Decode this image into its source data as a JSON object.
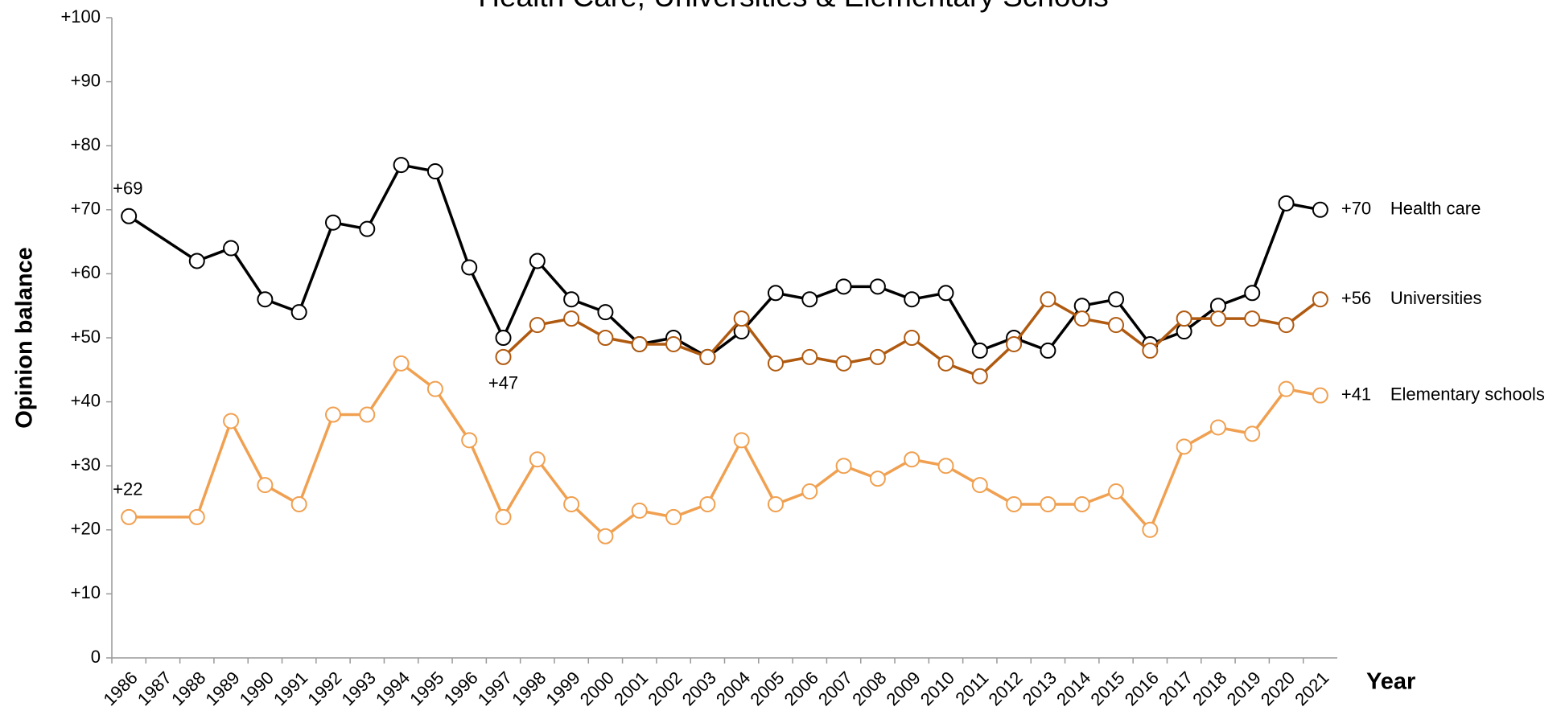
{
  "chart_data": {
    "type": "line",
    "title": "Health Care, Universities & Elementary Schools",
    "x_label": "Year",
    "y_label": "Opinion balance",
    "x": [
      1986,
      1988,
      1989,
      1990,
      1991,
      1992,
      1993,
      1994,
      1995,
      1996,
      1997,
      1998,
      1999,
      2000,
      2001,
      2002,
      2003,
      2004,
      2005,
      2006,
      2007,
      2008,
      2009,
      2010,
      2011,
      2012,
      2013,
      2014,
      2015,
      2016,
      2017,
      2018,
      2019,
      2020,
      2021
    ],
    "xlim": [
      1985.5,
      2021.5
    ],
    "xticks": [
      1986,
      1987,
      1988,
      1989,
      1990,
      1991,
      1992,
      1993,
      1994,
      1995,
      1996,
      1997,
      1998,
      1999,
      2000,
      2001,
      2002,
      2003,
      2004,
      2005,
      2006,
      2007,
      2008,
      2009,
      2010,
      2011,
      2012,
      2013,
      2014,
      2015,
      2016,
      2017,
      2018,
      2019,
      2020,
      2021
    ],
    "ylim": [
      0,
      100
    ],
    "yticks": [
      0,
      {
        "value": 10,
        "label": "+10"
      },
      {
        "value": 20,
        "label": "+20"
      },
      {
        "value": 30,
        "label": "+30"
      },
      {
        "value": 40,
        "label": "+40"
      },
      {
        "value": 50,
        "label": "+50"
      },
      {
        "value": 60,
        "label": "+60"
      },
      {
        "value": 70,
        "label": "+70"
      },
      {
        "value": 80,
        "label": "+80"
      },
      {
        "value": 90,
        "label": "+90"
      },
      {
        "value": 100,
        "label": "+100"
      }
    ],
    "series": [
      {
        "name": "Health care",
        "color": "#000000",
        "values": [
          69,
          62,
          64,
          56,
          54,
          68,
          67,
          77,
          76,
          61,
          50,
          62,
          56,
          54,
          49,
          50,
          47,
          51,
          57,
          56,
          58,
          58,
          56,
          57,
          48,
          50,
          48,
          55,
          56,
          49,
          51,
          55,
          57,
          71,
          70
        ],
        "value_labels": [
          "+69",
          null,
          null,
          null,
          null,
          null,
          null,
          null,
          null,
          null,
          null,
          null,
          null,
          null,
          null,
          null,
          null,
          null,
          null,
          null,
          null,
          null,
          null,
          null,
          null,
          null,
          null,
          null,
          null,
          null,
          null,
          null,
          null,
          null,
          "+70"
        ]
      },
      {
        "name": "Universities",
        "color": "#b05a10",
        "values": [
          null,
          null,
          null,
          null,
          null,
          null,
          null,
          null,
          null,
          null,
          47,
          52,
          53,
          50,
          49,
          49,
          47,
          53,
          46,
          47,
          46,
          47,
          50,
          46,
          44,
          49,
          56,
          53,
          52,
          48,
          53,
          53,
          53,
          52,
          56
        ],
        "value_labels": [
          null,
          null,
          null,
          null,
          null,
          null,
          null,
          null,
          null,
          null,
          "+47",
          null,
          null,
          null,
          null,
          null,
          null,
          null,
          null,
          null,
          null,
          null,
          null,
          null,
          null,
          null,
          null,
          null,
          null,
          null,
          null,
          null,
          null,
          null,
          "+56"
        ]
      },
      {
        "name": "Elementary schools",
        "color": "#f0a050",
        "values": [
          22,
          22,
          37,
          27,
          24,
          38,
          38,
          46,
          42,
          34,
          22,
          31,
          24,
          19,
          23,
          22,
          24,
          34,
          24,
          26,
          30,
          28,
          31,
          30,
          27,
          24,
          24,
          24,
          26,
          20,
          33,
          36,
          35,
          42,
          41
        ],
        "value_labels": [
          "+22",
          null,
          null,
          null,
          null,
          null,
          null,
          null,
          null,
          null,
          null,
          null,
          null,
          null,
          null,
          null,
          null,
          null,
          null,
          null,
          null,
          null,
          null,
          null,
          null,
          null,
          null,
          null,
          null,
          null,
          null,
          null,
          null,
          null,
          "+41"
        ]
      }
    ]
  }
}
